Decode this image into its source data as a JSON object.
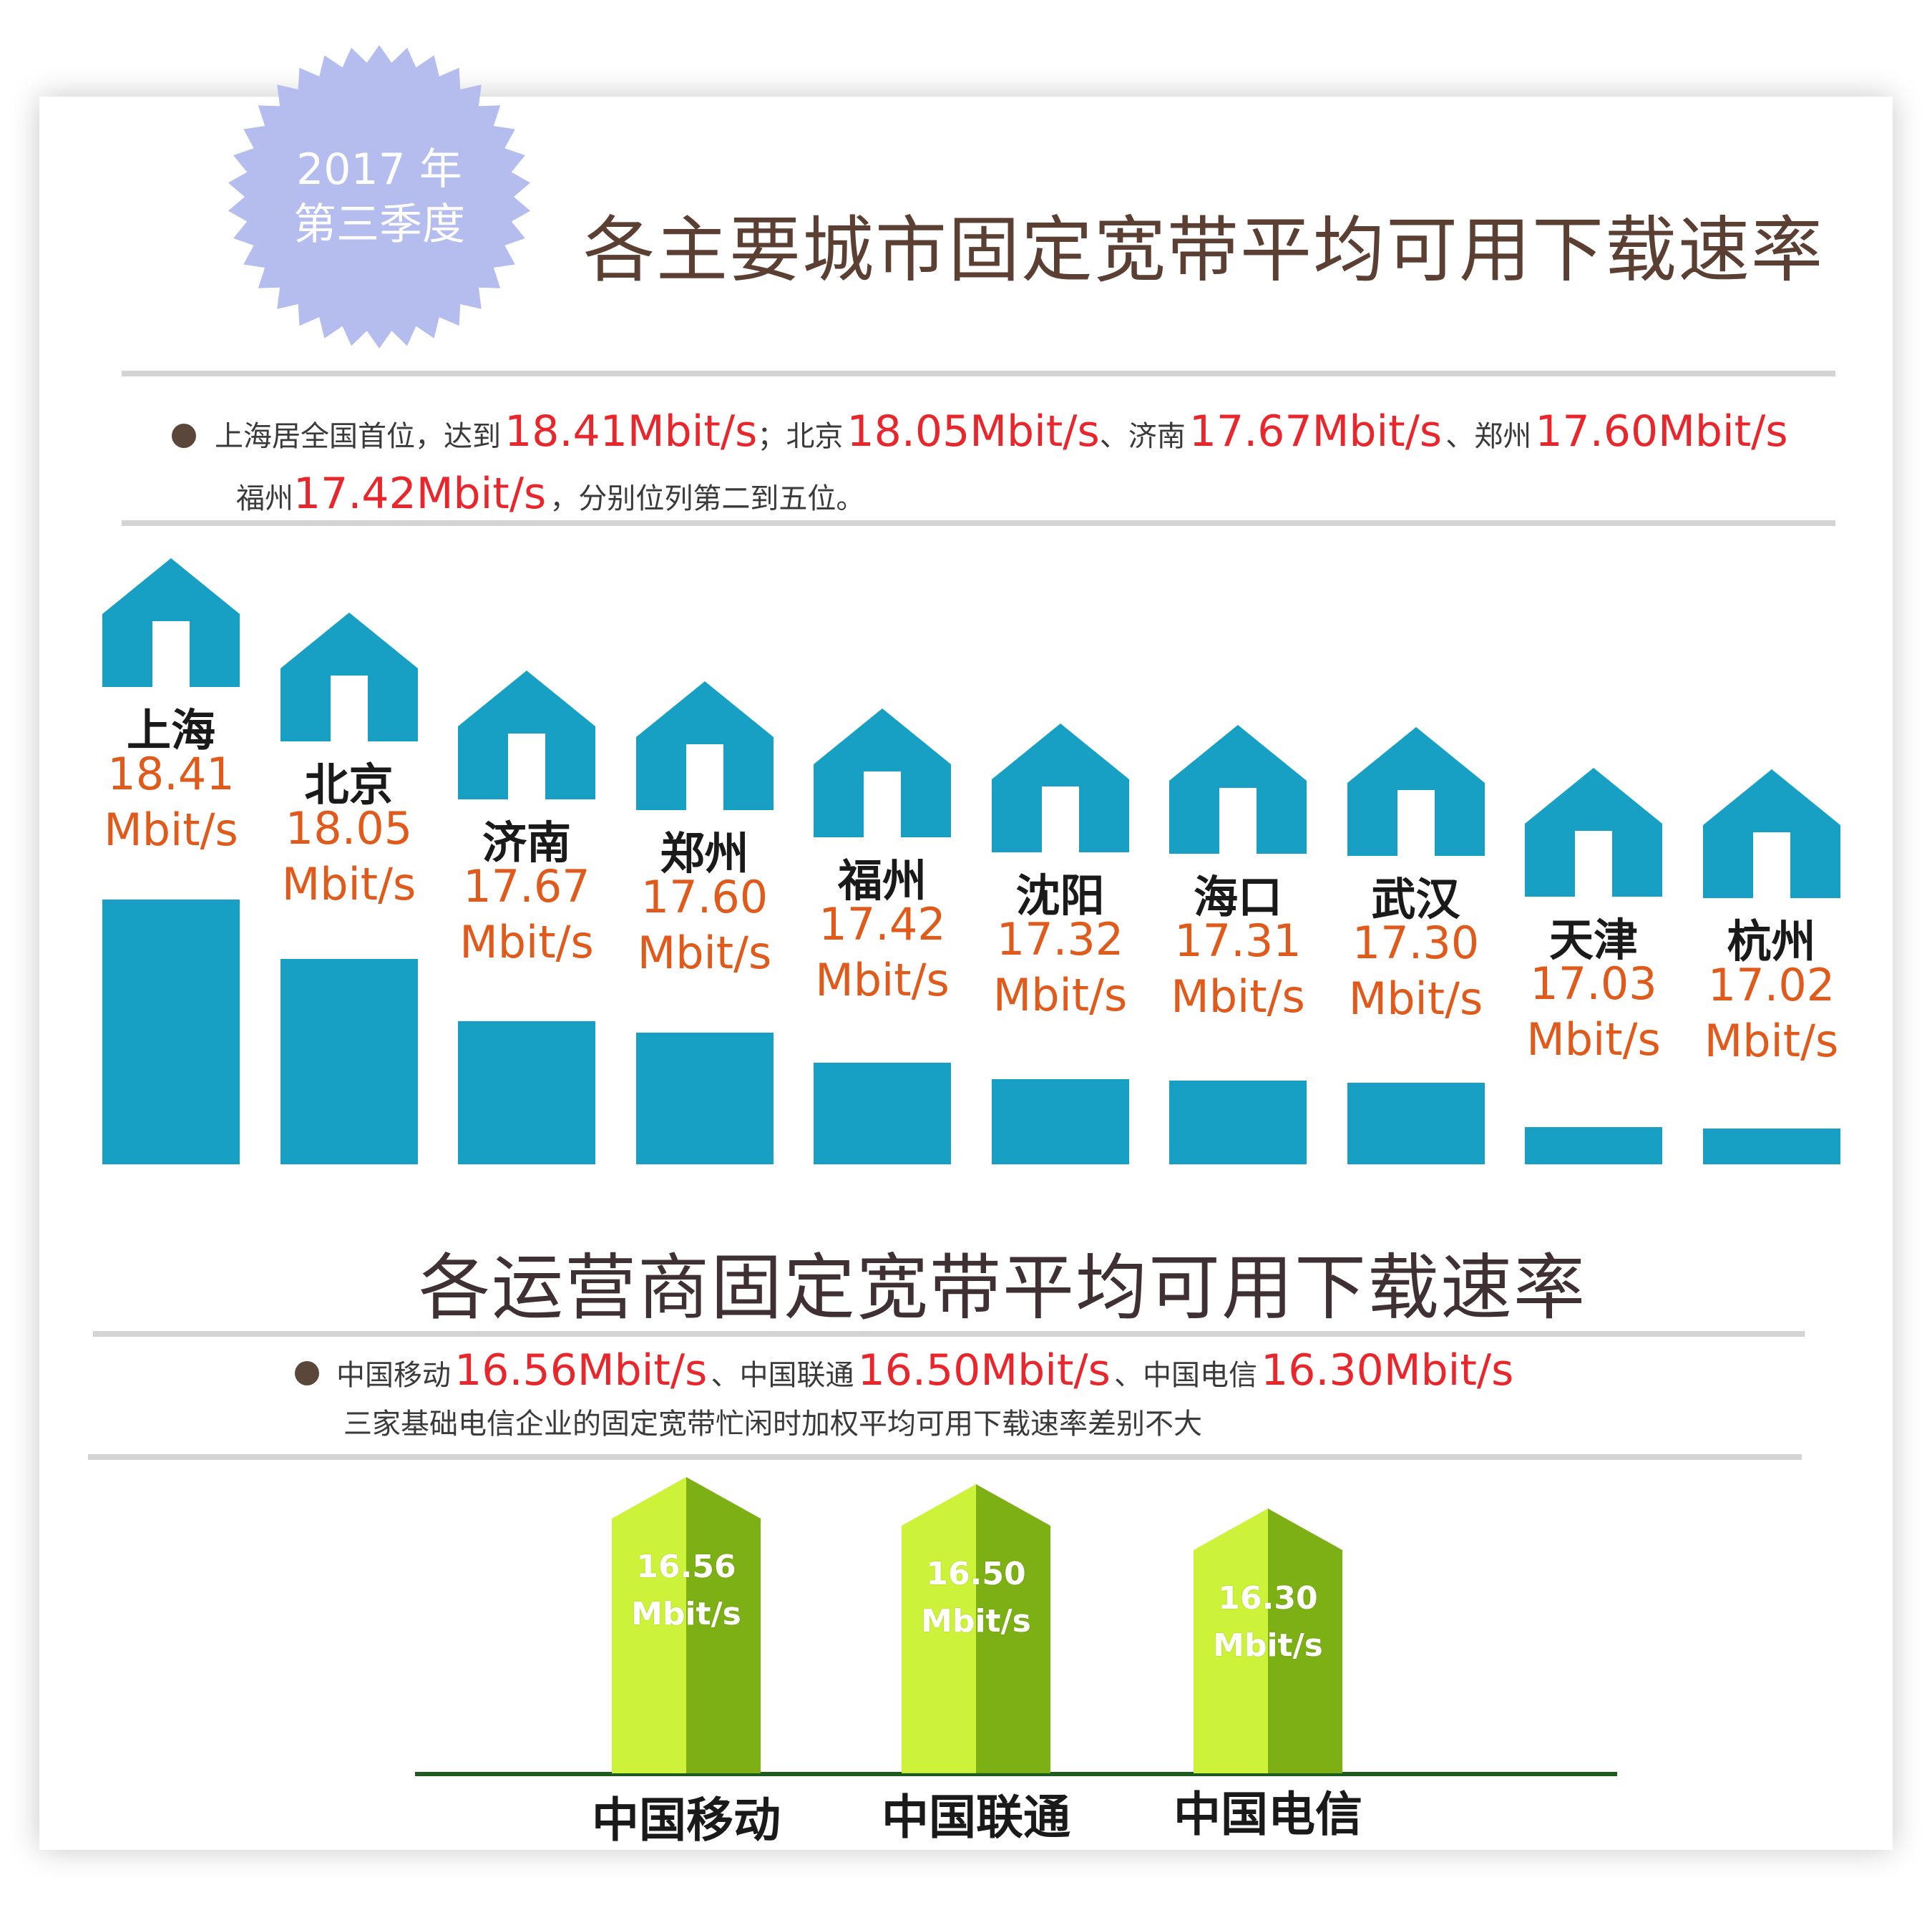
{
  "badge": {
    "line1": "2017 年",
    "line2": "第三季度",
    "color": "#b4bdee"
  },
  "section1": {
    "title": "各主要城市固定宽带平均可用下载速率",
    "summary": {
      "s1": "上海居全国首位，达到",
      "v1": "18.41Mbit/s",
      "s2": "；北京",
      "v2": "18.05Mbit/s",
      "s3": "、济南",
      "v3": "17.67Mbit/s",
      "s4": "、郑州",
      "v4": "17.60Mbit/s",
      "s5": "福州",
      "v5": "17.42Mbit/s",
      "s6": "，分别位列第二到五位。"
    }
  },
  "section2": {
    "title": "各运营商固定宽带平均可用下载速率",
    "summary": {
      "s1": "中国移动",
      "v1": "16.56Mbit/s",
      "s2": "、中国联通",
      "v2": "16.50Mbit/s",
      "s3": "、中国电信",
      "v3": "16.30Mbit/s",
      "note": "三家基础电信企业的固定宽带忙闲时加权平均可用下载速率差别不大"
    }
  },
  "unit": "Mbit/s",
  "colors": {
    "house": "#17a0c4",
    "value_red": "#e05a1b",
    "summary_red": "#e8262c",
    "arrow_light": "#ccf23a",
    "arrow_dark": "#7db015",
    "baseline": "#1e5a1e"
  },
  "chart_data": [
    {
      "type": "bar",
      "categories": [
        "上海",
        "北京",
        "济南",
        "郑州",
        "福州",
        "沈阳",
        "海口",
        "武汉",
        "天津",
        "杭州"
      ],
      "values": [
        18.41,
        18.05,
        17.67,
        17.6,
        17.42,
        17.32,
        17.31,
        17.3,
        17.03,
        17.02
      ],
      "labels": [
        "18.41",
        "18.05",
        "17.67",
        "17.60",
        "17.42",
        "17.32",
        "17.31",
        "17.30",
        "17.03",
        "17.02"
      ],
      "unit": "Mbit/s",
      "title": "各主要城市固定宽带平均可用下载速率"
    },
    {
      "type": "bar",
      "categories": [
        "中国移动",
        "中国联通",
        "中国电信"
      ],
      "values": [
        16.56,
        16.5,
        16.3
      ],
      "labels": [
        "16.56",
        "16.50",
        "16.30"
      ],
      "unit": "Mbit/s",
      "title": "各运营商固定宽带平均可用下载速率"
    }
  ]
}
